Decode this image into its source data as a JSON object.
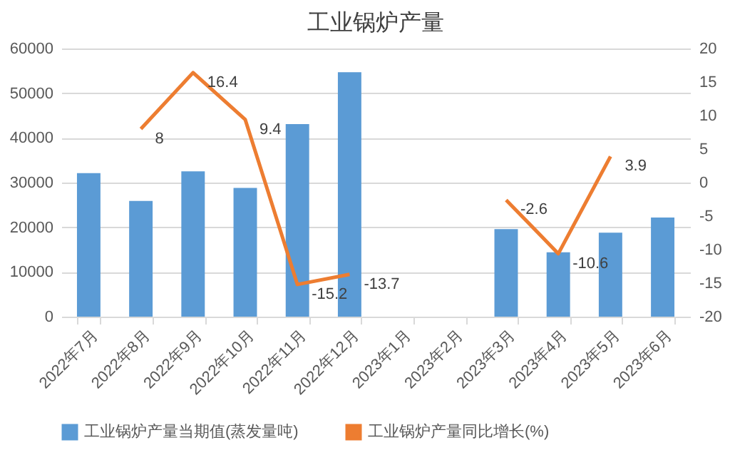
{
  "chart_data": {
    "type": "bar",
    "title": "工业锅炉产量",
    "categories": [
      "2022年7月",
      "2022年8月",
      "2022年9月",
      "2022年10月",
      "2022年11月",
      "2022年12月",
      "2023年1月",
      "2023年2月",
      "2023年3月",
      "2023年4月",
      "2023年5月",
      "2023年6月"
    ],
    "series": [
      {
        "name": "工业锅炉产量当期值(蒸发量吨)",
        "color": "#5b9bd5",
        "values": [
          32100,
          25900,
          32500,
          28800,
          43100,
          54700,
          null,
          null,
          19600,
          14400,
          18800,
          22200
        ]
      },
      {
        "name": "工业锅炉产量同比增长(%)",
        "type": "line",
        "axis": "y2",
        "color": "#ed7d31",
        "values": [
          null,
          8,
          16.4,
          9.4,
          -15.2,
          -13.7,
          null,
          null,
          -2.6,
          -10.6,
          3.9,
          null
        ],
        "value_labels": [
          null,
          "8",
          "16.4",
          "9.4",
          "-15.2",
          "-13.7",
          null,
          null,
          "-2.6",
          "-10.6",
          "3.9",
          null
        ]
      }
    ],
    "ylim": [
      0,
      60000
    ],
    "yticks": [
      0,
      10000,
      20000,
      30000,
      40000,
      50000,
      60000
    ],
    "y2lim": [
      -20,
      20
    ],
    "y2ticks": [
      -20,
      -15,
      -10,
      -5,
      0,
      5,
      10,
      15,
      20
    ],
    "grid": "y",
    "legend": "bottom"
  }
}
